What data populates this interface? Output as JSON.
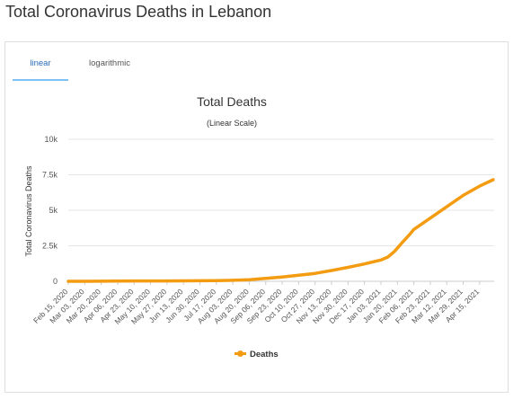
{
  "page": {
    "title": "Total Coronavirus Deaths in Lebanon"
  },
  "tabs": [
    {
      "label": "linear",
      "active": true
    },
    {
      "label": "logarithmic",
      "active": false
    }
  ],
  "colors": {
    "series": "#f39c12",
    "grid": "#e6e6e6",
    "tab_active": "#2a6ebd"
  },
  "chart_data": {
    "type": "line",
    "title": "Total Deaths",
    "subtitle": "(Linear Scale)",
    "ylabel": "Total Coronavirus Deaths",
    "xlabel": "",
    "ylim": [
      0,
      10000
    ],
    "yticks": [
      0,
      2500,
      5000,
      7500,
      10000
    ],
    "ytick_labels": [
      "0",
      "2.5k",
      "5k",
      "7.5k",
      "10k"
    ],
    "grid": true,
    "legend": "bottom",
    "x_tick_labels": [
      "Feb 15, 2020",
      "Mar 03, 2020",
      "Mar 20, 2020",
      "Apr 06, 2020",
      "Apr 23, 2020",
      "May 10, 2020",
      "May 27, 2020",
      "Jun 13, 2020",
      "Jun 30, 2020",
      "Jul 17, 2020",
      "Aug 03, 2020",
      "Aug 20, 2020",
      "Sep 06, 2020",
      "Sep 23, 2020",
      "Oct 10, 2020",
      "Oct 27, 2020",
      "Nov 13, 2020",
      "Nov 30, 2020",
      "Dec 17, 2020",
      "Jan 03, 2021",
      "Jan 20, 2021",
      "Feb 06, 2021",
      "Feb 23, 2021",
      "Mar 12, 2021",
      "Mar 29, 2021",
      "Apr 15, 2021"
    ],
    "series": [
      {
        "name": "Deaths",
        "points": [
          [
            "2020-02-15",
            0
          ],
          [
            "2020-03-03",
            0
          ],
          [
            "2020-03-20",
            4
          ],
          [
            "2020-04-06",
            19
          ],
          [
            "2020-04-23",
            24
          ],
          [
            "2020-05-10",
            26
          ],
          [
            "2020-05-27",
            26
          ],
          [
            "2020-06-13",
            32
          ],
          [
            "2020-06-30",
            36
          ],
          [
            "2020-07-17",
            44
          ],
          [
            "2020-08-03",
            68
          ],
          [
            "2020-08-20",
            113
          ],
          [
            "2020-09-06",
            200
          ],
          [
            "2020-09-23",
            300
          ],
          [
            "2020-10-10",
            430
          ],
          [
            "2020-10-27",
            560
          ],
          [
            "2020-11-13",
            760
          ],
          [
            "2020-11-30",
            980
          ],
          [
            "2020-12-17",
            1220
          ],
          [
            "2021-01-03",
            1500
          ],
          [
            "2021-01-10",
            1700
          ],
          [
            "2021-01-17",
            2100
          ],
          [
            "2021-01-24",
            2650
          ],
          [
            "2021-02-01",
            3250
          ],
          [
            "2021-02-06",
            3650
          ],
          [
            "2021-02-23",
            4450
          ],
          [
            "2021-03-12",
            5250
          ],
          [
            "2021-03-29",
            6050
          ],
          [
            "2021-04-15",
            6700
          ],
          [
            "2021-04-29",
            7150
          ]
        ]
      }
    ]
  }
}
